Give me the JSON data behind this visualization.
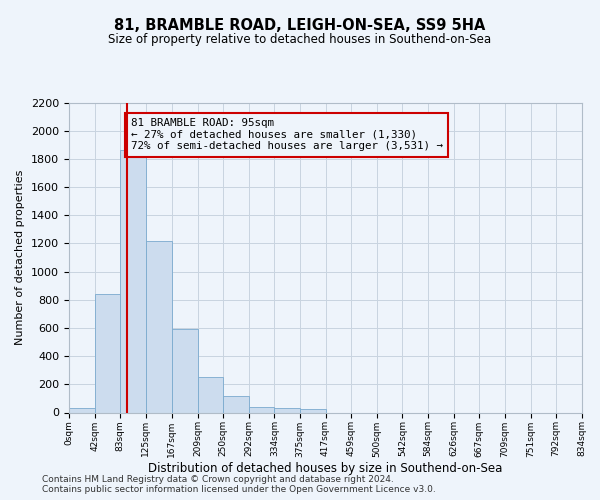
{
  "title": "81, BRAMBLE ROAD, LEIGH-ON-SEA, SS9 5HA",
  "subtitle": "Size of property relative to detached houses in Southend-on-Sea",
  "xlabel": "Distribution of detached houses by size in Southend-on-Sea",
  "ylabel": "Number of detached properties",
  "footnote1": "Contains HM Land Registry data © Crown copyright and database right 2024.",
  "footnote2": "Contains public sector information licensed under the Open Government Licence v3.0.",
  "annotation_line1": "81 BRAMBLE ROAD: 95sqm",
  "annotation_line2": "← 27% of detached houses are smaller (1,330)",
  "annotation_line3": "72% of semi-detached houses are larger (3,531) →",
  "bar_color": "#ccdcee",
  "bar_edge_color": "#7aaace",
  "marker_color": "#cc0000",
  "annotation_box_edge": "#cc0000",
  "grid_color": "#c8d4e0",
  "background_color": "#eef4fb",
  "ylim": [
    0,
    2200
  ],
  "yticks": [
    0,
    200,
    400,
    600,
    800,
    1000,
    1200,
    1400,
    1600,
    1800,
    2000,
    2200
  ],
  "bin_edges": [
    0,
    42,
    83,
    125,
    167,
    209,
    250,
    292,
    334,
    375,
    417,
    459,
    500,
    542,
    584,
    626,
    667,
    709,
    751,
    792,
    834
  ],
  "bin_labels": [
    "0sqm",
    "42sqm",
    "83sqm",
    "125sqm",
    "167sqm",
    "209sqm",
    "250sqm",
    "292sqm",
    "334sqm",
    "375sqm",
    "417sqm",
    "459sqm",
    "500sqm",
    "542sqm",
    "584sqm",
    "626sqm",
    "667sqm",
    "709sqm",
    "751sqm",
    "792sqm",
    "834sqm"
  ],
  "bar_heights": [
    30,
    840,
    1860,
    1220,
    590,
    255,
    120,
    40,
    35,
    25,
    0,
    0,
    0,
    0,
    0,
    0,
    0,
    0,
    0,
    0
  ],
  "property_size_sqm": 95,
  "title_fontsize": 10.5,
  "subtitle_fontsize": 8.5,
  "ylabel_fontsize": 8,
  "xlabel_fontsize": 8.5,
  "tick_fontsize": 8,
  "xtick_fontsize": 6.5,
  "footnote_fontsize": 6.5
}
